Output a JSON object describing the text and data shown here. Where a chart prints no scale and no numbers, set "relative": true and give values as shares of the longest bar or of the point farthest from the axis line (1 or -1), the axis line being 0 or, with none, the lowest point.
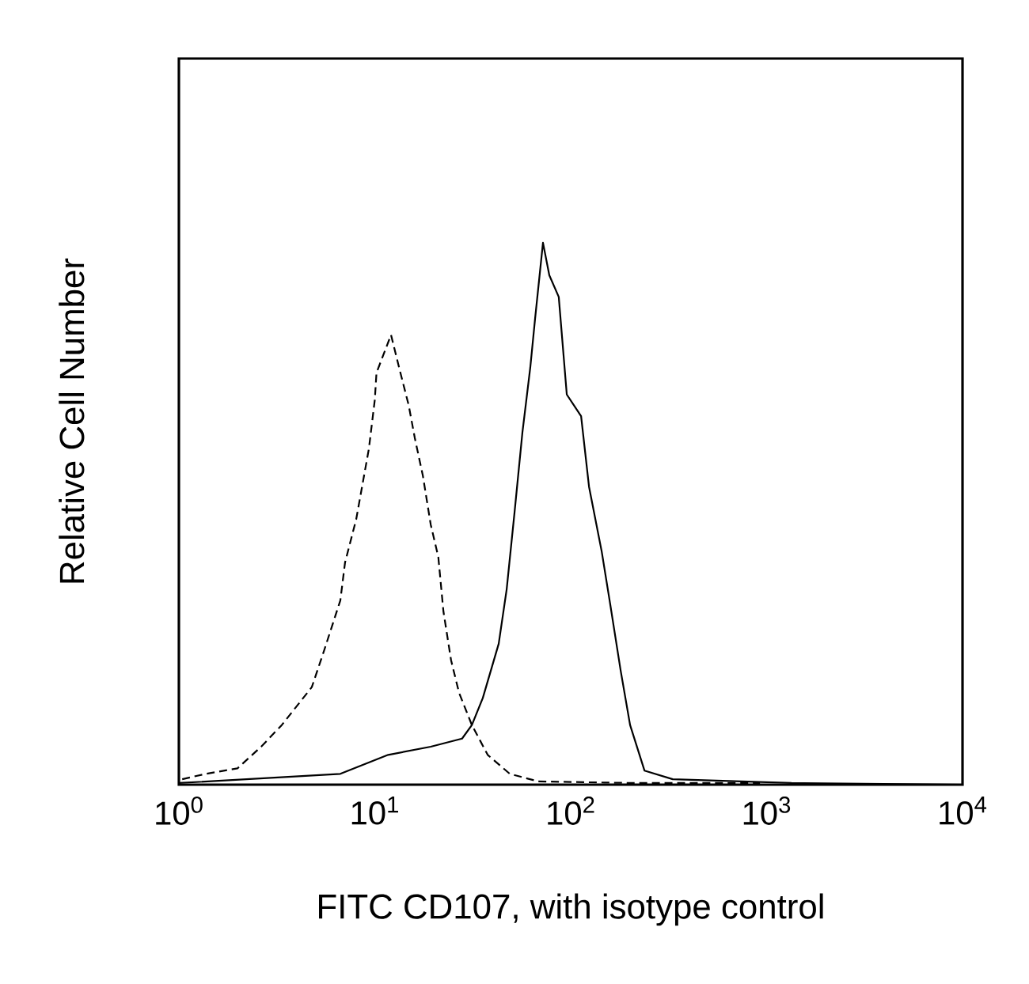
{
  "chart_data": {
    "type": "line",
    "relative": true,
    "log": "x",
    "xlabel": "FITC CD107, with isotype control",
    "ylabel": "Relative Cell Number",
    "xlim": [
      1,
      10000
    ],
    "xticks": [
      {
        "value": 1,
        "label": "10$^{0}$"
      },
      {
        "value": 10,
        "label": "10$^{1}$"
      },
      {
        "value": 100,
        "label": "10$^{2}$"
      },
      {
        "value": 1000,
        "label": "10$^{3}$"
      },
      {
        "value": 10000,
        "label": "10$^{4}$"
      }
    ],
    "series": [
      {
        "color": "#000000",
        "line_style": "dashed",
        "x": [
          1.04,
          1.37,
          1.99,
          2.63,
          3.35,
          4.77,
          5.54,
          6.67,
          7.05,
          8.04,
          9.33,
          10.0,
          10.2,
          12.1,
          13.3,
          14.9,
          16.0,
          17.6,
          19.3,
          21.1,
          22.4,
          24.5,
          26.9,
          31.3,
          37.7,
          48.9,
          68.3,
          208,
          925
        ],
        "values": [
          0.01,
          0.02,
          0.03,
          0.07,
          0.11,
          0.18,
          0.25,
          0.34,
          0.41,
          0.49,
          0.62,
          0.71,
          0.76,
          0.83,
          0.77,
          0.7,
          0.64,
          0.57,
          0.48,
          0.42,
          0.32,
          0.23,
          0.17,
          0.11,
          0.055,
          0.02,
          0.006,
          0.003,
          0.003
        ]
      },
      {
        "color": "#000000",
        "line_style": "solid",
        "x": [
          1,
          6.67,
          11.7,
          19.3,
          27.9,
          31.3,
          35.6,
          42.9,
          47.1,
          51.6,
          56.7,
          62.2,
          65.8,
          72.2,
          77.8,
          86.9,
          95.5,
          113,
          124,
          144,
          158,
          180,
          201,
          238,
          332,
          1340,
          10000
        ],
        "values": [
          0.003,
          0.02,
          0.055,
          0.07,
          0.085,
          0.11,
          0.16,
          0.26,
          0.36,
          0.5,
          0.65,
          0.77,
          0.86,
          1.0,
          0.94,
          0.9,
          0.72,
          0.68,
          0.55,
          0.43,
          0.34,
          0.21,
          0.11,
          0.026,
          0.01,
          0.003,
          0
        ]
      }
    ]
  }
}
